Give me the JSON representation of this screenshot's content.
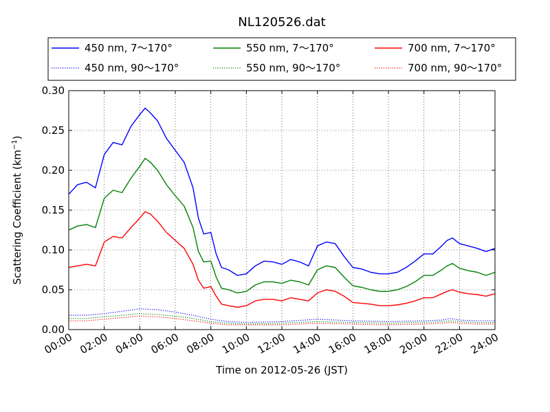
{
  "chart_data": {
    "type": "line",
    "title": "NL120526.dat",
    "xlabel": "Time on 2012-05-26 (JST)",
    "ylabel": "Scattering Coefficient (km",
    "ylabel_sup": "−1",
    "ylabel_close": ")",
    "xlim": [
      0,
      24
    ],
    "ylim": [
      0,
      0.3
    ],
    "x_ticks": [
      0,
      2,
      4,
      6,
      8,
      10,
      12,
      14,
      16,
      18,
      20,
      22,
      24
    ],
    "x_tick_labels": [
      "00:00",
      "02:00",
      "04:00",
      "06:00",
      "08:00",
      "10:00",
      "12:00",
      "14:00",
      "16:00",
      "18:00",
      "20:00",
      "22:00",
      "24:00"
    ],
    "y_ticks": [
      0,
      0.05,
      0.1,
      0.15,
      0.2,
      0.25,
      0.3
    ],
    "y_tick_labels": [
      "0.00",
      "0.05",
      "0.10",
      "0.15",
      "0.20",
      "0.25",
      "0.30"
    ],
    "grid": true,
    "legend_placement": "top, above plot, 3 columns",
    "series": [
      {
        "name": "450 nm, 7～170°",
        "color": "#0000ff",
        "style": "solid",
        "x": [
          0,
          0.5,
          1,
          1.5,
          2,
          2.5,
          3,
          3.5,
          4,
          4.3,
          4.6,
          5,
          5.5,
          6,
          6.5,
          7,
          7.3,
          7.6,
          8,
          8.3,
          8.6,
          9,
          9.5,
          10,
          10.5,
          11,
          11.5,
          12,
          12.5,
          13,
          13.5,
          14,
          14.5,
          15,
          15.5,
          16,
          16.5,
          17,
          17.5,
          18,
          18.5,
          19,
          19.5,
          20,
          20.5,
          21,
          21.3,
          21.6,
          22,
          22.5,
          23,
          23.5,
          24
        ],
        "y": [
          0.17,
          0.182,
          0.185,
          0.178,
          0.22,
          0.235,
          0.232,
          0.255,
          0.27,
          0.278,
          0.272,
          0.262,
          0.24,
          0.225,
          0.21,
          0.178,
          0.14,
          0.12,
          0.122,
          0.095,
          0.078,
          0.075,
          0.068,
          0.07,
          0.08,
          0.086,
          0.085,
          0.082,
          0.088,
          0.085,
          0.08,
          0.105,
          0.11,
          0.108,
          0.092,
          0.078,
          0.076,
          0.072,
          0.07,
          0.07,
          0.072,
          0.078,
          0.086,
          0.095,
          0.095,
          0.105,
          0.112,
          0.115,
          0.108,
          0.105,
          0.102,
          0.098,
          0.102
        ]
      },
      {
        "name": "450 nm, 90～170°",
        "color": "#0000ff",
        "style": "dotted",
        "x": [
          0,
          1,
          2,
          3,
          4,
          5,
          6,
          7,
          8,
          9,
          10,
          12,
          14,
          16,
          18,
          20,
          21,
          21.5,
          22,
          23,
          24
        ],
        "y": [
          0.018,
          0.018,
          0.02,
          0.023,
          0.026,
          0.025,
          0.022,
          0.018,
          0.013,
          0.01,
          0.009,
          0.01,
          0.013,
          0.011,
          0.01,
          0.011,
          0.012,
          0.014,
          0.012,
          0.011,
          0.011
        ]
      },
      {
        "name": "550 nm, 7～170°",
        "color": "#008000",
        "style": "solid",
        "x": [
          0,
          0.5,
          1,
          1.5,
          2,
          2.5,
          3,
          3.5,
          4,
          4.3,
          4.6,
          5,
          5.5,
          6,
          6.5,
          7,
          7.3,
          7.6,
          8,
          8.3,
          8.6,
          9,
          9.5,
          10,
          10.5,
          11,
          11.5,
          12,
          12.5,
          13,
          13.5,
          14,
          14.5,
          15,
          15.5,
          16,
          16.5,
          17,
          17.5,
          18,
          18.5,
          19,
          19.5,
          20,
          20.5,
          21,
          21.3,
          21.6,
          22,
          22.5,
          23,
          23.5,
          24
        ],
        "y": [
          0.125,
          0.13,
          0.132,
          0.128,
          0.165,
          0.175,
          0.172,
          0.19,
          0.205,
          0.215,
          0.21,
          0.2,
          0.182,
          0.168,
          0.155,
          0.128,
          0.098,
          0.085,
          0.086,
          0.066,
          0.052,
          0.05,
          0.046,
          0.048,
          0.056,
          0.06,
          0.06,
          0.058,
          0.062,
          0.06,
          0.056,
          0.075,
          0.08,
          0.078,
          0.066,
          0.055,
          0.053,
          0.05,
          0.048,
          0.048,
          0.05,
          0.054,
          0.06,
          0.068,
          0.068,
          0.075,
          0.08,
          0.083,
          0.077,
          0.074,
          0.072,
          0.068,
          0.072
        ]
      },
      {
        "name": "550 nm, 90～170°",
        "color": "#008000",
        "style": "dotted",
        "x": [
          0,
          1,
          2,
          3,
          4,
          5,
          6,
          7,
          8,
          9,
          10,
          12,
          14,
          16,
          18,
          20,
          21,
          21.5,
          22,
          23,
          24
        ],
        "y": [
          0.014,
          0.014,
          0.016,
          0.018,
          0.02,
          0.019,
          0.017,
          0.014,
          0.01,
          0.008,
          0.007,
          0.008,
          0.01,
          0.009,
          0.008,
          0.009,
          0.01,
          0.011,
          0.01,
          0.009,
          0.009
        ]
      },
      {
        "name": "700 nm, 7～170°",
        "color": "#ff0000",
        "style": "solid",
        "x": [
          0,
          0.5,
          1,
          1.5,
          2,
          2.5,
          3,
          3.5,
          4,
          4.3,
          4.6,
          5,
          5.5,
          6,
          6.5,
          7,
          7.3,
          7.6,
          8,
          8.3,
          8.6,
          9,
          9.5,
          10,
          10.5,
          11,
          11.5,
          12,
          12.5,
          13,
          13.5,
          14,
          14.5,
          15,
          15.5,
          16,
          16.5,
          17,
          17.5,
          18,
          18.5,
          19,
          19.5,
          20,
          20.5,
          21,
          21.3,
          21.6,
          22,
          22.5,
          23,
          23.5,
          24
        ],
        "y": [
          0.078,
          0.08,
          0.082,
          0.08,
          0.11,
          0.117,
          0.115,
          0.128,
          0.14,
          0.148,
          0.145,
          0.136,
          0.122,
          0.112,
          0.102,
          0.082,
          0.062,
          0.052,
          0.054,
          0.042,
          0.032,
          0.03,
          0.028,
          0.03,
          0.036,
          0.038,
          0.038,
          0.036,
          0.04,
          0.038,
          0.036,
          0.046,
          0.05,
          0.048,
          0.042,
          0.034,
          0.033,
          0.032,
          0.03,
          0.03,
          0.031,
          0.033,
          0.036,
          0.04,
          0.04,
          0.045,
          0.048,
          0.05,
          0.047,
          0.045,
          0.044,
          0.042,
          0.045
        ]
      },
      {
        "name": "700 nm, 90～170°",
        "color": "#ff0000",
        "style": "dotted",
        "x": [
          0,
          1,
          2,
          3,
          4,
          5,
          6,
          7,
          8,
          9,
          10,
          12,
          14,
          16,
          18,
          20,
          21,
          21.5,
          22,
          23,
          24
        ],
        "y": [
          0.011,
          0.011,
          0.013,
          0.015,
          0.017,
          0.016,
          0.014,
          0.011,
          0.008,
          0.006,
          0.006,
          0.006,
          0.008,
          0.007,
          0.006,
          0.007,
          0.008,
          0.009,
          0.008,
          0.007,
          0.007
        ]
      }
    ]
  }
}
